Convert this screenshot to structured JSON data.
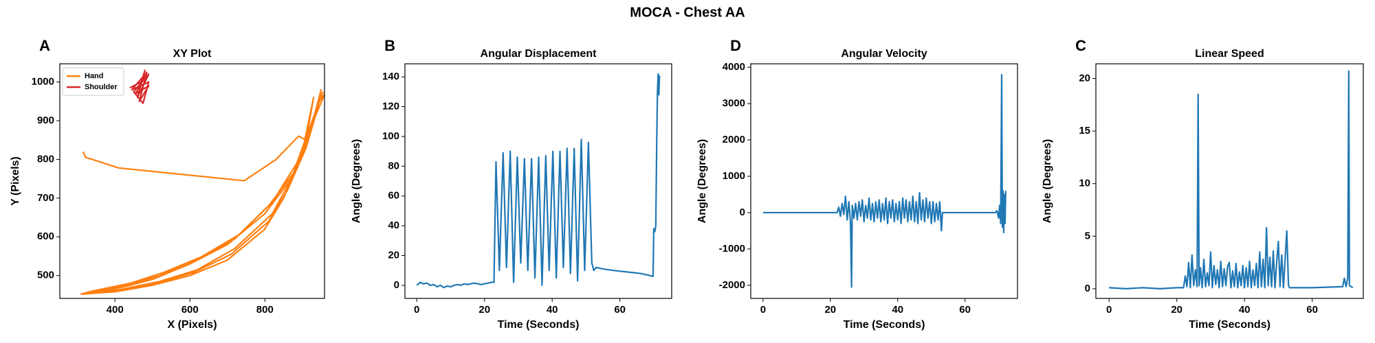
{
  "title": "MOCA - Chest AA",
  "chart_data": [
    {
      "type": "line",
      "panel_label": "A",
      "title": "XY Plot",
      "xlabel": "X (Pixels)",
      "ylabel": "Y (Pixels)",
      "xlim": [
        253,
        959
      ],
      "ylim": [
        441,
        1047
      ],
      "xticks": [
        400,
        600,
        800
      ],
      "yticks": [
        500,
        600,
        700,
        800,
        900,
        1000
      ],
      "legend": "upper left",
      "series": [
        {
          "name": "Hand",
          "color": "#ff7f0e",
          "x": [
            315,
            322,
            340,
            410,
            745,
            830,
            890,
            910,
            930,
            900,
            850,
            800,
            700,
            600,
            500,
            400,
            310,
            320,
            420,
            500,
            600,
            700,
            800,
            870,
            920,
            950,
            940,
            910,
            860,
            810,
            710,
            610,
            510,
            410,
            320,
            330,
            430,
            520,
            620,
            720,
            810,
            880,
            925,
            960,
            945,
            915,
            865,
            820,
            720,
            620,
            520,
            420,
            330,
            340,
            440,
            530,
            630,
            730,
            820,
            885,
            930,
            955
          ],
          "values": [
            820,
            805,
            800,
            778,
            745,
            800,
            860,
            850,
            960,
            820,
            700,
            620,
            540,
            500,
            475,
            458,
            452,
            455,
            470,
            490,
            530,
            580,
            660,
            750,
            870,
            980,
            930,
            830,
            720,
            640,
            555,
            508,
            480,
            462,
            454,
            458,
            475,
            500,
            540,
            595,
            680,
            770,
            890,
            970,
            950,
            850,
            740,
            660,
            570,
            515,
            485,
            465,
            455,
            460,
            480,
            508,
            548,
            605,
            690,
            790,
            910,
            975
          ]
        },
        {
          "name": "Shoulder",
          "color": "#d62728",
          "x": [
            440,
            470,
            480,
            460,
            490,
            450,
            475,
            490,
            445,
            485,
            465,
            490,
            455,
            480
          ],
          "values": [
            985,
            1000,
            1030,
            960,
            1020,
            975,
            945,
            1000,
            980,
            1025,
            950,
            990,
            970,
            1015
          ]
        }
      ]
    },
    {
      "type": "line",
      "panel_label": "B",
      "title": "Angular Displacement",
      "xlabel": "Time (Seconds)",
      "ylabel": "Angle (Degrees)",
      "xlim": [
        -3.5,
        75.3
      ],
      "ylim": [
        -8.8,
        148.8
      ],
      "xticks": [
        0,
        20,
        40,
        60
      ],
      "yticks": [
        0,
        20,
        40,
        60,
        80,
        100,
        120,
        140
      ],
      "color": "#1f77b4",
      "x": [
        0,
        1,
        2,
        3,
        4,
        5,
        6,
        7,
        8,
        9,
        10,
        11,
        12,
        13,
        14,
        15,
        16,
        17,
        18,
        19,
        20,
        21,
        22,
        22.8,
        23.4,
        24.4,
        25.5,
        26.5,
        27.6,
        28.6,
        29.7,
        30.7,
        31.8,
        32.8,
        33.9,
        34.9,
        36,
        37,
        38.1,
        39.1,
        40.2,
        41.2,
        42.3,
        43.3,
        44.4,
        45.4,
        46.5,
        47.5,
        48.6,
        49.6,
        50.7,
        51.7,
        52.3,
        53,
        55,
        58,
        62,
        66,
        68,
        69.8,
        70,
        70.3,
        70.6,
        70.9,
        71.1,
        71.3,
        71.5,
        71.7
      ],
      "values": [
        0,
        2,
        1,
        1.5,
        0,
        0.5,
        -1,
        0,
        -1.5,
        -0.5,
        -1,
        0,
        0.5,
        0,
        1,
        0.5,
        1,
        1.5,
        1,
        0.5,
        1,
        1.5,
        2,
        2,
        83,
        10,
        89,
        12,
        90,
        2,
        86,
        15,
        85,
        10,
        85,
        5,
        86,
        0,
        87,
        10,
        90,
        5,
        90,
        12,
        92,
        8,
        92,
        3,
        98,
        10,
        96,
        15,
        10,
        12,
        11,
        10,
        9,
        8,
        7,
        6,
        38,
        36,
        40,
        100,
        130,
        142,
        128,
        141
      ]
    },
    {
      "type": "line",
      "panel_label": "D",
      "title": "Angular Velocity",
      "xlabel": "Time (Seconds)",
      "ylabel": "Angle (Degrees)",
      "xlim": [
        -3.65,
        75.6
      ],
      "ylim": [
        -2361,
        4096
      ],
      "xticks": [
        0,
        20,
        40,
        60
      ],
      "yticks": [
        -2000,
        -1000,
        0,
        1000,
        2000,
        3000,
        4000
      ],
      "color": "#1f77b4",
      "x": [
        0,
        5,
        10,
        15,
        20,
        22,
        22.5,
        23,
        23.5,
        24,
        24.5,
        25,
        25.5,
        26,
        26.3,
        26.5,
        27,
        27.5,
        28,
        28.5,
        29,
        29.5,
        30,
        30.5,
        31,
        31.5,
        32,
        32.5,
        33,
        33.5,
        34,
        34.5,
        35,
        35.5,
        36,
        36.5,
        37,
        37.5,
        38,
        38.5,
        39,
        39.5,
        40,
        40.5,
        41,
        41.5,
        42,
        42.5,
        43,
        43.5,
        44,
        44.5,
        45,
        45.5,
        46,
        46.5,
        47,
        47.5,
        48,
        48.5,
        49,
        49.5,
        50,
        50.5,
        51,
        51.5,
        52,
        52.5,
        53,
        53.3,
        55,
        60,
        65,
        69,
        69.5,
        70,
        70.3,
        70.6,
        70.9,
        71.1,
        71.3,
        71.5,
        71.7,
        71.9,
        72.1
      ],
      "values": [
        0,
        0,
        0,
        0,
        0,
        0,
        150,
        -100,
        250,
        -50,
        450,
        -200,
        300,
        -300,
        -2050,
        200,
        -150,
        250,
        -200,
        300,
        -100,
        350,
        -250,
        200,
        -150,
        400,
        -200,
        250,
        -250,
        300,
        -150,
        350,
        -250,
        250,
        -200,
        400,
        -300,
        300,
        -150,
        350,
        -250,
        250,
        -200,
        300,
        -300,
        400,
        -150,
        350,
        -250,
        300,
        -200,
        450,
        -250,
        300,
        -300,
        550,
        -200,
        350,
        -250,
        400,
        -150,
        300,
        -300,
        300,
        -250,
        250,
        -200,
        300,
        -500,
        0,
        0,
        0,
        0,
        0,
        50,
        -150,
        200,
        -300,
        3800,
        -400,
        600,
        -550,
        500,
        -300,
        600
      ]
    },
    {
      "type": "line",
      "panel_label": "C",
      "title": "Linear Speed",
      "xlabel": "Time (Seconds)",
      "ylabel": "Angle (Degrees)",
      "xlim": [
        -3.9,
        75.1
      ],
      "ylim": [
        -0.92,
        21.4
      ],
      "xticks": [
        0,
        20,
        40,
        60
      ],
      "yticks": [
        0,
        5,
        10,
        15,
        20
      ],
      "color": "#1f77b4",
      "x": [
        0,
        5,
        10,
        15,
        20,
        22,
        22.5,
        23,
        23.5,
        24,
        24.5,
        25,
        25.5,
        26,
        26.3,
        26.6,
        27,
        27.5,
        28,
        28.5,
        29,
        29.5,
        30,
        30.5,
        31,
        31.5,
        32,
        32.5,
        33,
        33.5,
        34,
        34.5,
        35,
        35.5,
        36,
        36.5,
        37,
        37.5,
        38,
        38.5,
        39,
        39.5,
        40,
        40.5,
        41,
        41.5,
        42,
        42.5,
        43,
        43.5,
        44,
        44.5,
        45,
        45.5,
        46,
        46.5,
        47,
        47.5,
        48,
        48.5,
        49,
        49.5,
        50,
        50.5,
        51,
        51.5,
        52,
        52.5,
        53,
        53.3,
        60,
        69,
        69.5,
        70,
        70.5,
        70.8,
        71,
        72
      ],
      "values": [
        0.1,
        0,
        0.1,
        0,
        0.1,
        0.1,
        1.2,
        0.2,
        2.5,
        0.1,
        3.2,
        0.3,
        1.8,
        0.2,
        18.5,
        0.3,
        2.0,
        0.1,
        2.8,
        0.2,
        1.5,
        0.3,
        3.5,
        0.1,
        2.2,
        0.4,
        1.8,
        0.1,
        2.6,
        0.2,
        1.9,
        0.3,
        2.1,
        2.5,
        0.1,
        1.7,
        0.2,
        2.4,
        0.1,
        1.6,
        0.3,
        2.2,
        0.1,
        2.0,
        0.2,
        2.6,
        0.1,
        1.8,
        0.3,
        2.4,
        0.1,
        3.5,
        0.2,
        2.8,
        0.1,
        5.8,
        0.3,
        3.0,
        0.2,
        3.6,
        0.1,
        2.5,
        4.5,
        0.2,
        3.2,
        0.1,
        2.8,
        5.5,
        0.3,
        0.1,
        0.1,
        0.2,
        1.0,
        0.2,
        1.0,
        20.7,
        0.3,
        0.1
      ]
    }
  ]
}
